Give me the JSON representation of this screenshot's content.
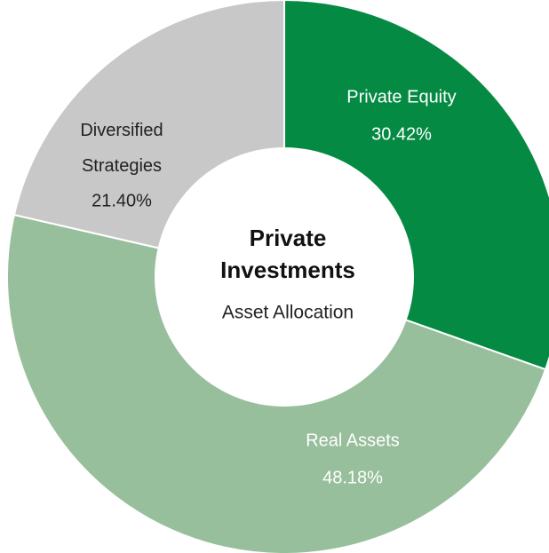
{
  "chart_data": {
    "type": "pie",
    "title": "Private Investments",
    "subtitle": "Asset Allocation",
    "categories": [
      "Private Equity",
      "Real Assets",
      "Diversified Strategies"
    ],
    "values": [
      30.42,
      48.18,
      21.4
    ],
    "value_labels": [
      "30.42%",
      "48.18%",
      "21.40%"
    ],
    "colors": [
      "#058a44",
      "#98bf9c",
      "#c8c8c8"
    ]
  }
}
